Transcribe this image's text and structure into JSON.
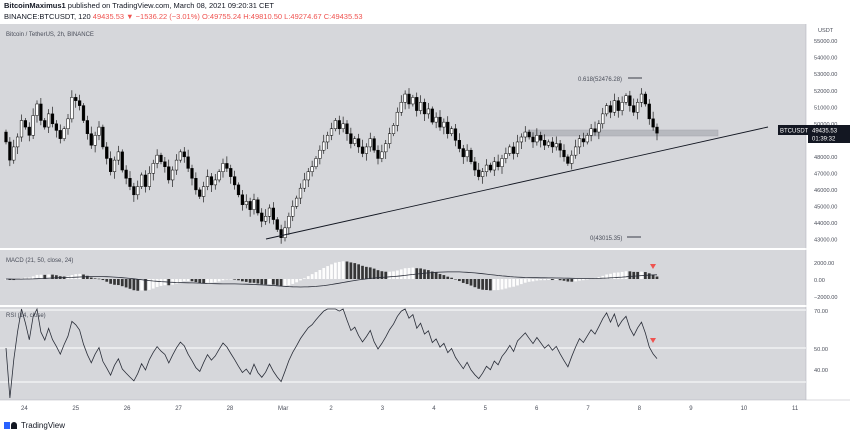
{
  "header": {
    "author": "BitcoinMaximus1",
    "published": " published on TradingView.com, March 08, 2021 09:20:31 CET",
    "symbol_line": "BINANCE:BTCUSDT, 120 ",
    "last_price": "49435.53",
    "change": "▼ −1536.22 (−3.01%)",
    "ohlc": "O:49755.24  H:49810.50  L:49274.67  C:49435.53"
  },
  "main_pane": {
    "title": "Bitcoin / TetherUS, 2h, BINANCE",
    "currency": "USDT",
    "price_axis": [
      "55000.00",
      "54000.00",
      "53000.00",
      "52000.00",
      "51000.00",
      "50000.00",
      "49000.00",
      "48000.00",
      "47000.00",
      "46000.00",
      "45000.00",
      "44000.00",
      "43000.00"
    ],
    "fib_upper": "0.618(52476.28)",
    "fib_lower": "0(43015.35)",
    "symbol_tag": "BTCUSDT",
    "price_tag": "49435.53",
    "countdown": "01:39:32"
  },
  "macd_pane": {
    "title": "MACD (21, 50, close, 24)",
    "axis": [
      "2000.00",
      "0.00",
      "−2000.00"
    ]
  },
  "rsi_pane": {
    "title": "RSI (14, close)",
    "axis": [
      "70.00",
      "50.00",
      "40.00"
    ]
  },
  "time_axis": [
    "24",
    "25",
    "26",
    "27",
    "28",
    "Mar",
    "2",
    "3",
    "4",
    "5",
    "6",
    "7",
    "8",
    "9",
    "10",
    "11"
  ],
  "footer": {
    "brand": "TradingView"
  },
  "colors": {
    "pane_bg": "#d6d7db",
    "up": "#ffffff",
    "down": "#000000",
    "accent_red": "#ef5350",
    "label_bg": "#131722"
  },
  "chart_data": {
    "type": "candlestick",
    "title": "Bitcoin / TetherUS, 2h, BINANCE",
    "ylim": [
      42600,
      55800
    ],
    "y_ticks": [
      43000,
      44000,
      45000,
      46000,
      47000,
      48000,
      49000,
      50000,
      51000,
      52000,
      53000,
      54000,
      55000
    ],
    "x_ticks": [
      "24",
      "25",
      "26",
      "27",
      "28",
      "Mar",
      "2",
      "3",
      "4",
      "5",
      "6",
      "7",
      "8",
      "9",
      "10",
      "11"
    ],
    "last_close": 49435.53,
    "ohlc_last": {
      "open": 49755.24,
      "high": 49810.5,
      "low": 49274.67,
      "close": 49435.53
    },
    "fibonacci": [
      {
        "level": "0.618",
        "price": 52476.28
      },
      {
        "level": "0",
        "price": 43015.35
      }
    ],
    "trendline": {
      "from": {
        "date": "Feb 28",
        "price": 43100
      },
      "to": {
        "date": "Mar 10",
        "price": 49900
      }
    },
    "resistance_zone": [
      49400,
      49650
    ],
    "closes": [
      48900,
      47800,
      48600,
      49200,
      50200,
      49800,
      49300,
      50500,
      51200,
      50200,
      49800,
      50600,
      50000,
      49600,
      49100,
      49700,
      50300,
      51600,
      51400,
      51100,
      50200,
      49400,
      48700,
      49300,
      49800,
      48600,
      47900,
      47100,
      47800,
      48300,
      47200,
      46700,
      46200,
      45700,
      46200,
      46900,
      46200,
      47000,
      47600,
      48100,
      47700,
      47400,
      46600,
      47200,
      47800,
      48300,
      48000,
      47300,
      46700,
      46000,
      45600,
      46200,
      46800,
      46300,
      46600,
      47100,
      47600,
      47300,
      46800,
      46300,
      45700,
      45100,
      45300,
      44800,
      45400,
      44600,
      44100,
      44400,
      44900,
      44200,
      43600,
      43100,
      43700,
      44400,
      45000,
      45500,
      46100,
      46600,
      47100,
      47400,
      47900,
      48400,
      48900,
      49300,
      49700,
      50200,
      49700,
      50000,
      49400,
      48800,
      49100,
      48600,
      48200,
      48600,
      49100,
      48400,
      47900,
      48300,
      48800,
      49400,
      49900,
      50700,
      51300,
      51800,
      51200,
      51600,
      50800,
      51300,
      50600,
      50900,
      50100,
      50400,
      49800,
      50100,
      49400,
      49700,
      49000,
      48500,
      48000,
      48400,
      47700,
      47200,
      46800,
      47100,
      47500,
      47200,
      47700,
      47400,
      47900,
      48200,
      48600,
      48200,
      48900,
      49200,
      49500,
      49200,
      48900,
      49300,
      49000,
      48700,
      48900,
      48600,
      48800,
      48400,
      48000,
      47600,
      48100,
      48600,
      49100,
      48900,
      49300,
      49700,
      49500,
      50000,
      50600,
      51100,
      50700,
      51400,
      50800,
      51300,
      51700,
      51100,
      50700,
      51300,
      51800,
      51200,
      50300,
      49800,
      49435
    ]
  }
}
